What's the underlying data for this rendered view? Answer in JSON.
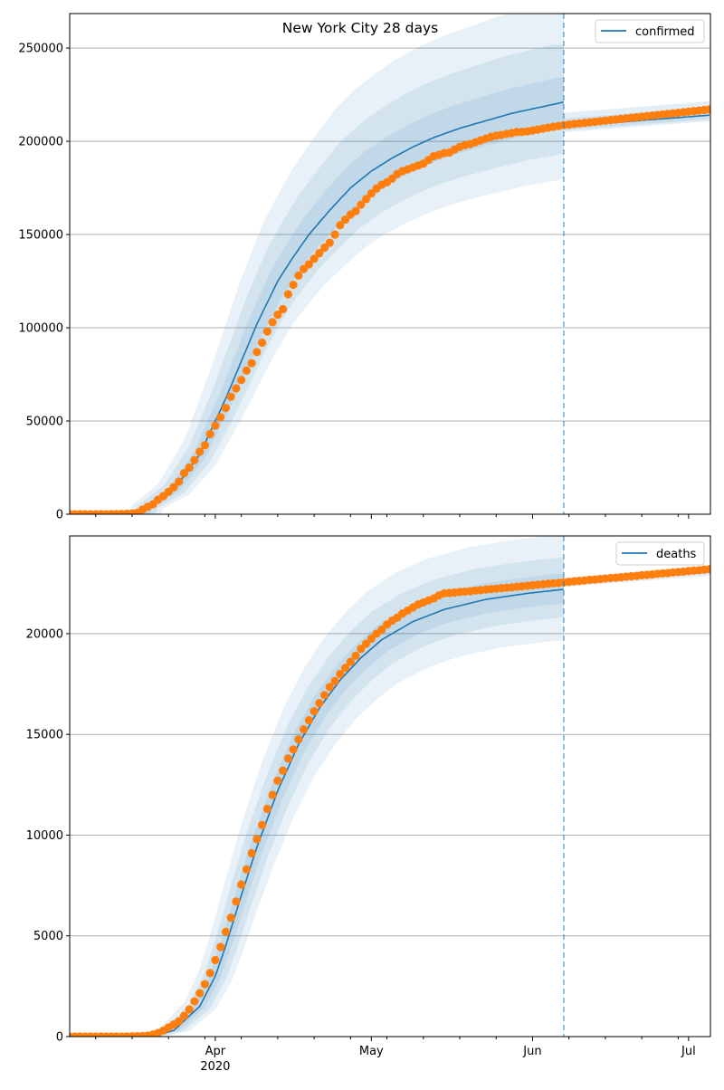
{
  "chart_data": [
    {
      "type": "line",
      "title": "New York City 28 days",
      "legend": {
        "label": "confirmed",
        "placement": "top-right"
      },
      "x_start_date": "2020-03-04",
      "x_unit": "day",
      "xlim_days": [
        0,
        123.2
      ],
      "ylim": [
        0,
        268500
      ],
      "yticks": [
        0,
        50000,
        100000,
        150000,
        200000,
        250000
      ],
      "ytick_labels": [
        "0",
        "50000",
        "100000",
        "150000",
        "200000",
        "250000"
      ],
      "grid": "horizontal",
      "forecast_start_day": 95,
      "observed": [
        1,
        2,
        4,
        6,
        12,
        16,
        19,
        36,
        53,
        95,
        154,
        269,
        463,
        814,
        2469,
        3954,
        5300,
        7800,
        9700,
        12000,
        14500,
        17500,
        22000,
        25000,
        29000,
        33500,
        37000,
        43000,
        47600,
        52000,
        57000,
        63000,
        67500,
        72000,
        77000,
        81000,
        87000,
        92000,
        98000,
        103000,
        107000,
        110000,
        118000,
        123000,
        128000,
        131500,
        134000,
        137000,
        140000,
        143000,
        145600,
        150000,
        155000,
        158000,
        160700,
        162600,
        166000,
        169000,
        172000,
        174700,
        176700,
        178000,
        180000,
        182500,
        184000,
        185000,
        186000,
        187000,
        188000,
        190000,
        192000,
        192700,
        193700,
        194000,
        195600,
        197000,
        198000,
        198500,
        199500,
        200500,
        201400,
        202400,
        203000,
        203400,
        204000,
        204400,
        205000,
        205100,
        205300,
        205800,
        206300,
        206800,
        207300,
        207800,
        208200,
        208700,
        209000,
        209300,
        209600,
        209900,
        210200,
        210500,
        210800,
        211100,
        211400,
        211700,
        212000,
        212300,
        212600,
        212900,
        213200,
        213500,
        213800,
        214100,
        214400,
        214700,
        215000,
        215300,
        215600,
        215900,
        216200,
        216500,
        216800,
        217100
      ],
      "model_fit": {
        "days": [
          15,
          20,
          25,
          27,
          30,
          33,
          36,
          40,
          43,
          46,
          50,
          54,
          58,
          62,
          66,
          70,
          75,
          80,
          85,
          90,
          95
        ],
        "values": [
          4000,
          13000,
          32000,
          44000,
          62000,
          82000,
          102000,
          125000,
          138000,
          150000,
          163000,
          175000,
          184000,
          191000,
          197000,
          202000,
          207000,
          211000,
          215000,
          218000,
          221000
        ]
      },
      "model_forecast": {
        "days": [
          95,
          123
        ],
        "values": [
          208000,
          214000
        ]
      },
      "fit_bands": [
        {
          "lo": 0.82,
          "hi": 1.24,
          "time_spread_days": 3
        },
        {
          "lo": 0.88,
          "hi": 1.14,
          "time_spread_days": 2
        },
        {
          "lo": 0.94,
          "hi": 1.06,
          "time_spread_days": 1
        }
      ],
      "forecast_bands": [
        {
          "lo": 0.985,
          "hi": 1.035
        },
        {
          "lo": 0.99,
          "hi": 1.02
        }
      ]
    },
    {
      "type": "line",
      "title": "",
      "legend": {
        "label": "deaths",
        "placement": "top-right"
      },
      "x_start_date": "2020-03-04",
      "x_unit": "day",
      "xlim_days": [
        0,
        123.2
      ],
      "ylim": [
        0,
        24850
      ],
      "yticks": [
        0,
        5000,
        10000,
        15000,
        20000
      ],
      "ytick_labels": [
        "0",
        "5000",
        "10000",
        "15000",
        "20000"
      ],
      "grid": "horizontal",
      "forecast_start_day": 95,
      "observed": [
        0,
        0,
        0,
        0,
        0,
        0,
        0,
        0,
        0,
        0,
        2,
        5,
        10,
        20,
        30,
        50,
        100,
        180,
        300,
        450,
        600,
        760,
        1030,
        1350,
        1750,
        2150,
        2600,
        3150,
        3800,
        4450,
        5200,
        5900,
        6700,
        7550,
        8300,
        9100,
        9800,
        10500,
        11300,
        12000,
        12700,
        13200,
        13800,
        14250,
        14750,
        15250,
        15700,
        16150,
        16550,
        16950,
        17350,
        17650,
        18000,
        18300,
        18600,
        18900,
        19250,
        19500,
        19750,
        20000,
        20200,
        20450,
        20650,
        20800,
        21000,
        21150,
        21300,
        21450,
        21550,
        21650,
        21750,
        21900,
        22000,
        22020,
        22040,
        22070,
        22090,
        22110,
        22140,
        22160,
        22190,
        22210,
        22230,
        22260,
        22280,
        22300,
        22330,
        22350,
        22380,
        22400,
        22430,
        22450,
        22480,
        22500,
        22520,
        22550,
        22570,
        22600,
        22620,
        22640,
        22670,
        22690,
        22710,
        22740,
        22760,
        22780,
        22800,
        22830,
        22850,
        22870,
        22900,
        22920,
        22940,
        22970,
        22990,
        23010,
        23040,
        23060,
        23080,
        23110,
        23130,
        23150,
        23180,
        23200
      ],
      "model_fit": {
        "days": [
          15,
          20,
          25,
          28,
          30,
          33,
          36,
          40,
          44,
          48,
          52,
          56,
          60,
          66,
          72,
          80,
          88,
          95
        ],
        "values": [
          0,
          300,
          1500,
          3000,
          4500,
          7000,
          9400,
          12200,
          14500,
          16300,
          17700,
          18800,
          19700,
          20600,
          21200,
          21700,
          22000,
          22200
        ]
      },
      "model_forecast": {
        "days": [
          95,
          123
        ],
        "values": [
          22550,
          23100
        ]
      },
      "fit_bands": [
        {
          "lo": 0.89,
          "hi": 1.12,
          "time_spread_days": 3
        },
        {
          "lo": 0.94,
          "hi": 1.07,
          "time_spread_days": 2
        },
        {
          "lo": 0.97,
          "hi": 1.035,
          "time_spread_days": 1
        }
      ],
      "forecast_bands": [
        {
          "lo": 0.99,
          "hi": 1.01
        },
        {
          "lo": 0.995,
          "hi": 1.005
        }
      ]
    }
  ],
  "x_axis": {
    "major_ticks": [
      {
        "day": 28,
        "label": "Apr",
        "sublabel": "2020"
      },
      {
        "day": 58,
        "label": "May",
        "sublabel": ""
      },
      {
        "day": 89,
        "label": "Jun",
        "sublabel": ""
      },
      {
        "day": 119,
        "label": "Jul",
        "sublabel": ""
      }
    ],
    "minor_tick_days": [
      5,
      12,
      19,
      26,
      33,
      40,
      47,
      54,
      61,
      68,
      75,
      82,
      96,
      103,
      110,
      117
    ]
  },
  "colors": {
    "model": "#1f77b4",
    "observed": "#ff7f0e",
    "grid": "#b0b0b0"
  }
}
